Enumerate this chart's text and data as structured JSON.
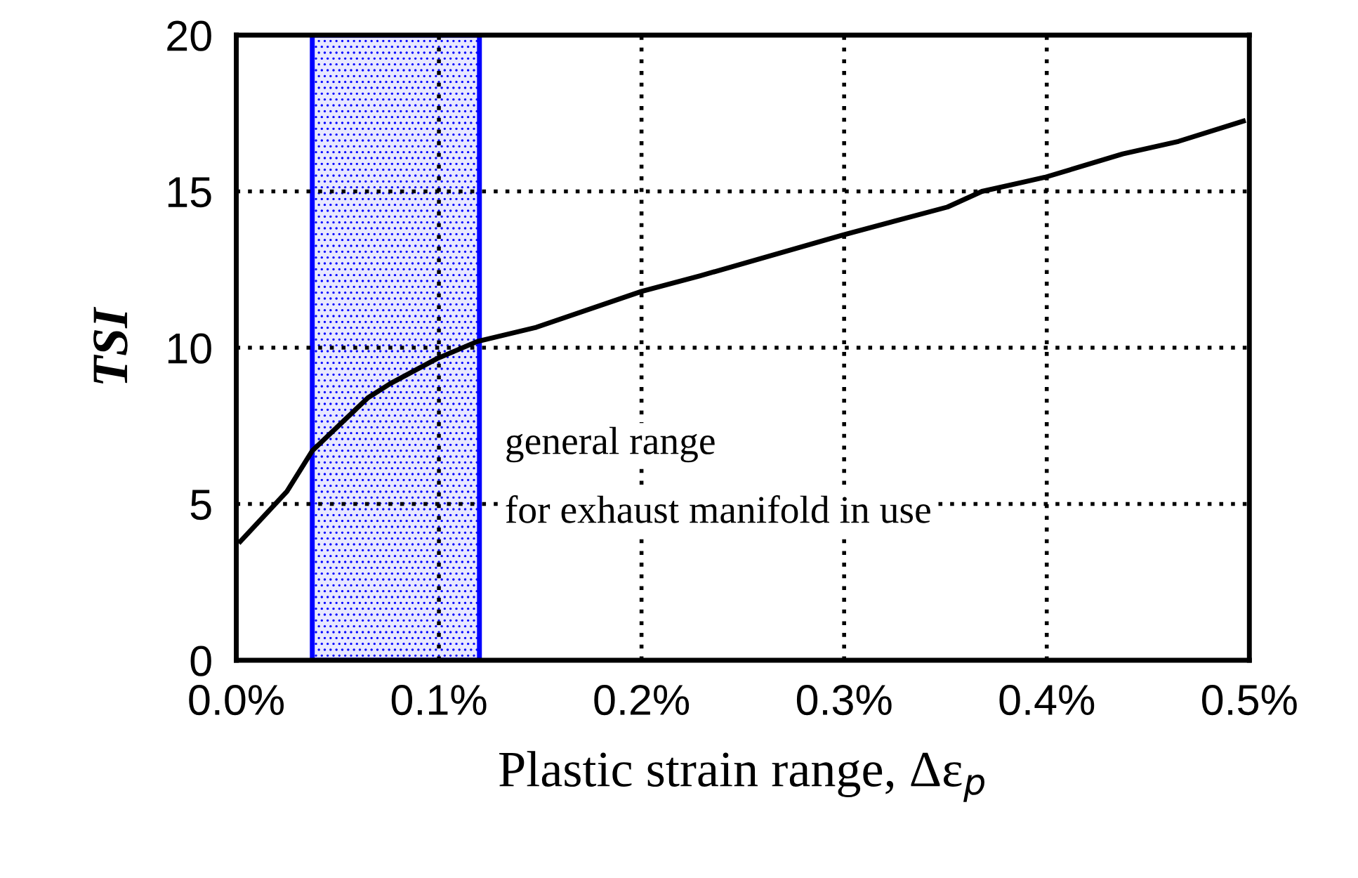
{
  "chart_data": {
    "type": "line",
    "xlabel": "Plastic strain range, Δε$_{p}$",
    "ylabel": "TSI",
    "x": [
      0.002,
      0.025,
      0.0375,
      0.065,
      0.076,
      0.099,
      0.119,
      0.148,
      0.2,
      0.229,
      0.299,
      0.351,
      0.368,
      0.399,
      0.4375,
      0.465,
      0.497
    ],
    "series": [
      {
        "color": "#000000",
        "values": [
          3.8,
          5.4,
          6.7,
          8.4,
          8.85,
          9.65,
          10.2,
          10.65,
          11.8,
          12.3,
          13.6,
          14.5,
          15.0,
          15.45,
          16.2,
          16.6,
          17.25
        ]
      }
    ],
    "xlim": [
      0,
      0.5
    ],
    "ylim": [
      0,
      20
    ],
    "xticks": [
      {
        "value": 0,
        "label": "0.0%"
      },
      {
        "value": 0.1,
        "label": "0.1%"
      },
      {
        "value": 0.2,
        "label": "0.2%"
      },
      {
        "value": 0.3,
        "label": "0.3%"
      },
      {
        "value": 0.4,
        "label": "0.4%"
      },
      {
        "value": 0.5,
        "label": "0.5%"
      }
    ],
    "yticks": [
      0,
      5,
      10,
      15,
      20
    ],
    "bands": [
      {
        "axis": "x",
        "from": 0.0375,
        "to": 0.12,
        "color": "#0000ff"
      }
    ],
    "annotations": [
      "general range",
      "for exhaust manifold in use"
    ],
    "grid": true,
    "marker": "none",
    "line_style": "solid",
    "legend": false
  }
}
